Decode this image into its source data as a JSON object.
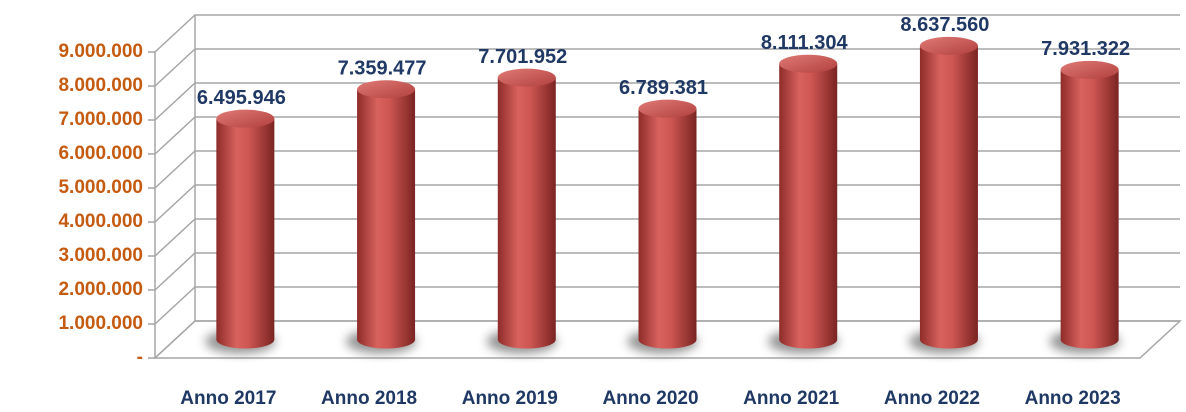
{
  "chart_data": {
    "type": "bar",
    "categories": [
      "Anno 2017",
      "Anno 2018",
      "Anno 2019",
      "Anno 2020",
      "Anno 2021",
      "Anno 2022",
      "Anno 2023"
    ],
    "values": [
      6495946,
      7359477,
      7701952,
      6789381,
      8111304,
      8637560,
      7931322
    ],
    "value_labels": [
      "6.495.946",
      "7.359.477",
      "7.701.952",
      "6.789.381",
      "8.111.304",
      "8.637.560",
      "7.931.322"
    ],
    "color": "#c0504d",
    "ylim": [
      0,
      9000000
    ],
    "yticks": [
      {
        "value": 0,
        "label": "-"
      },
      {
        "value": 1000000,
        "label": "1.000.000"
      },
      {
        "value": 2000000,
        "label": "2.000.000"
      },
      {
        "value": 3000000,
        "label": "3.000.000"
      },
      {
        "value": 4000000,
        "label": "4.000.000"
      },
      {
        "value": 5000000,
        "label": "5.000.000"
      },
      {
        "value": 6000000,
        "label": "6.000.000"
      },
      {
        "value": 7000000,
        "label": "7.000.000"
      },
      {
        "value": 8000000,
        "label": "8.000.000"
      },
      {
        "value": 9000000,
        "label": "9.000.000"
      }
    ],
    "grid": true
  }
}
